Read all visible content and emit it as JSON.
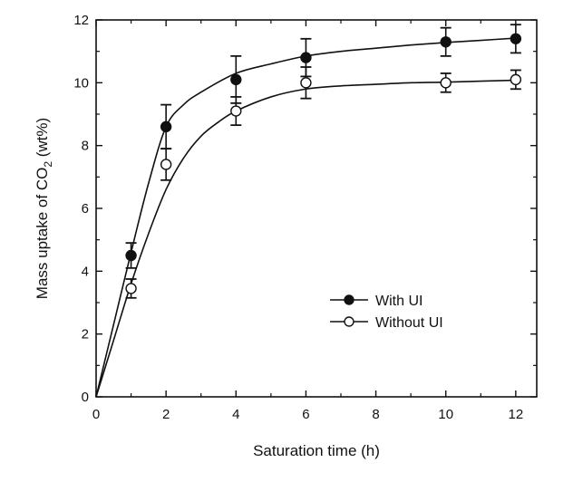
{
  "chart_data": {
    "type": "scatter",
    "title": "",
    "xlabel": "Saturation time (h)",
    "ylabel": "Mass uptake of CO",
    "ylabel_subscript": "2",
    "ylabel_suffix": " (wt%)",
    "xlim": [
      0,
      12.6
    ],
    "ylim": [
      0,
      12
    ],
    "x_ticks": [
      0,
      2,
      4,
      6,
      8,
      10,
      12
    ],
    "y_ticks": [
      0,
      2,
      4,
      6,
      8,
      10,
      12
    ],
    "grid": false,
    "legend_position": "bottom-right",
    "series": [
      {
        "name": "With UI",
        "marker": "filled-circle",
        "color": "#111111",
        "x": [
          1,
          2,
          4,
          6,
          10,
          12
        ],
        "y": [
          4.5,
          8.6,
          10.1,
          10.8,
          11.3,
          11.4
        ],
        "err": [
          0.4,
          0.7,
          0.75,
          0.6,
          0.45,
          0.45
        ],
        "fit": {
          "x": [
            0,
            0.5,
            1,
            1.5,
            2,
            2.5,
            3,
            4,
            5,
            6,
            7,
            8,
            9,
            10,
            11,
            12
          ],
          "y": [
            0,
            2.3,
            4.6,
            6.8,
            8.6,
            9.3,
            9.7,
            10.3,
            10.6,
            10.85,
            11.0,
            11.1,
            11.2,
            11.28,
            11.35,
            11.42
          ]
        }
      },
      {
        "name": "Without UI",
        "marker": "open-circle",
        "color": "#111111",
        "x": [
          1,
          2,
          4,
          6,
          10,
          12
        ],
        "y": [
          3.45,
          7.4,
          9.1,
          10.0,
          10.0,
          10.1
        ],
        "err": [
          0.3,
          0.5,
          0.45,
          0.5,
          0.3,
          0.3
        ],
        "fit": {
          "x": [
            0,
            0.5,
            1,
            1.5,
            2,
            2.5,
            3,
            3.5,
            4,
            5,
            6,
            7,
            8,
            9,
            10,
            11,
            12
          ],
          "y": [
            0,
            1.8,
            3.6,
            5.2,
            6.6,
            7.6,
            8.3,
            8.75,
            9.1,
            9.55,
            9.8,
            9.9,
            9.95,
            10.0,
            10.02,
            10.05,
            10.08
          ]
        }
      }
    ]
  }
}
